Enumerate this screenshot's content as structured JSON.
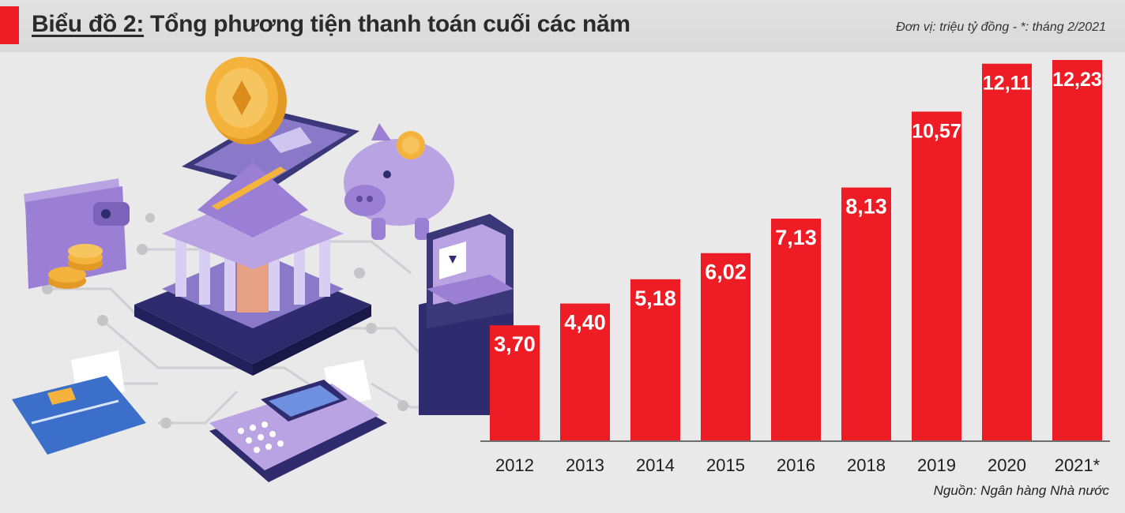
{
  "header": {
    "title_prefix": "Biểu đồ 2:",
    "title_rest": " Tổng phương tiện thanh toán cuối các năm",
    "unit_note": "Đơn vị: triệu tỷ đồng - *: tháng 2/2021"
  },
  "footer": {
    "source": "Nguồn: Ngân hàng Nhà nước"
  },
  "colors": {
    "bar": "#ee1c25",
    "accent": "#ee1c25",
    "illustration_purple": "#9b7fd4",
    "illustration_navy": "#2e2c6e",
    "coin_gold": "#f4b33d"
  },
  "chart_data": {
    "type": "bar",
    "title": "Biểu đồ 2: Tổng phương tiện thanh toán cuối các năm",
    "xlabel": "",
    "ylabel": "triệu tỷ đồng",
    "categories": [
      "2012",
      "2013",
      "2014",
      "2015",
      "2016",
      "2018",
      "2019",
      "2020",
      "2021*"
    ],
    "values": [
      3.7,
      4.4,
      5.18,
      6.02,
      7.13,
      8.13,
      10.57,
      12.11,
      12.23
    ],
    "value_labels": [
      "3,70",
      "4,40",
      "5,18",
      "6,02",
      "7,13",
      "8,13",
      "10,57",
      "12,11",
      "12,23"
    ],
    "ylim": [
      0,
      14
    ],
    "grid": false,
    "legend": "none"
  }
}
